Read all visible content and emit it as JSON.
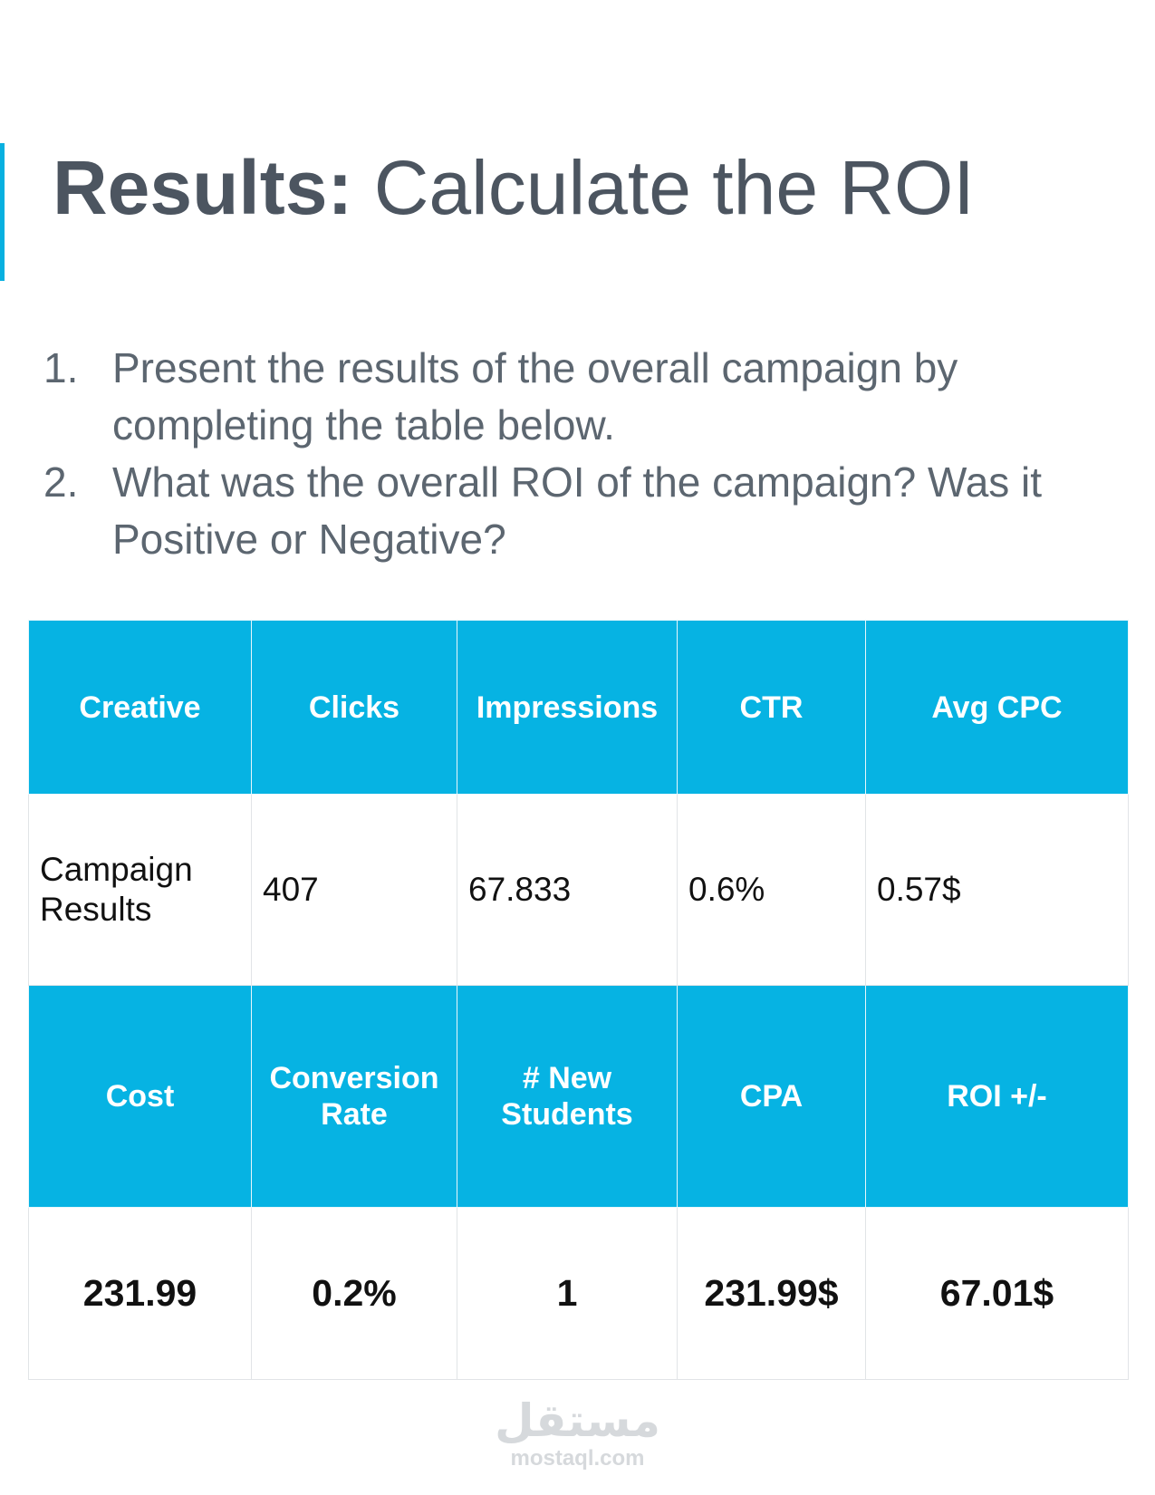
{
  "title": {
    "bold": "Results:",
    "rest": " Calculate the ROI"
  },
  "questions": [
    {
      "num": "1.",
      "text": "Present the results of the overall campaign by completing the table below."
    },
    {
      "num": "2.",
      "text": "What was the overall ROI of the campaign? Was it Positive or Negative?"
    }
  ],
  "table": {
    "header1": [
      "Creative",
      "Clicks",
      "Impressions",
      "CTR",
      "Avg CPC"
    ],
    "row1": [
      "Campaign Results",
      "407",
      "67.833",
      "0.6%",
      "0.57$"
    ],
    "header2": [
      "Cost",
      "Conversion Rate",
      "# New Students",
      "CPA",
      "ROI +/-"
    ],
    "row2": [
      "231.99",
      "0.2%",
      "1",
      "231.99$",
      "67.01$"
    ]
  },
  "watermark": {
    "logo": "مستقل",
    "url": "mostaql.com"
  },
  "colors": {
    "accent": "#08b0e0",
    "header_bg": "#06b3e3",
    "title_text": "#4c5560"
  }
}
